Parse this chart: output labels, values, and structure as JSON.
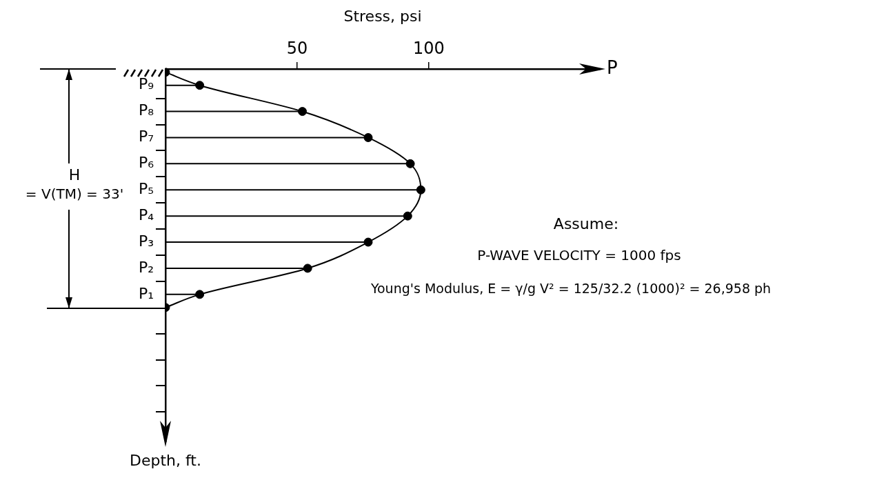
{
  "chart_data": {
    "type": "lollipop",
    "orientation": "horizontal",
    "xlabel": "Stress, psi",
    "ylabel": "Depth, ft.",
    "categories": [
      null,
      null,
      "P₉",
      null,
      null,
      null,
      "P₈",
      null,
      null,
      null,
      "P₇",
      null,
      null,
      null,
      "P₆",
      null,
      null,
      null,
      "P₅",
      null,
      null,
      null,
      "P₄",
      null,
      null,
      null,
      "P₃",
      null,
      null,
      null,
      "P₂",
      null,
      null,
      null,
      "P₁",
      null,
      null,
      null,
      null,
      null,
      null,
      null,
      null,
      null,
      null,
      null,
      null,
      null,
      null,
      null,
      null,
      null,
      null,
      null,
      null,
      null,
      null
    ],
    "xlim": [
      0,
      165
    ],
    "xticks": [
      50,
      100
    ],
    "legend": false,
    "grid": false,
    "series": [
      {
        "color": "#000000",
        "marker": "circle",
        "values": [
          0,
          null,
          13,
          null,
          null,
          null,
          52,
          null,
          null,
          null,
          77,
          null,
          null,
          null,
          93,
          null,
          null,
          null,
          97,
          null,
          null,
          null,
          92,
          null,
          null,
          null,
          77,
          null,
          null,
          null,
          54,
          null,
          null,
          null,
          13,
          null,
          0,
          null,
          null,
          null,
          null,
          null,
          null,
          null,
          null,
          null,
          null,
          null,
          null,
          null,
          null,
          null,
          null,
          null,
          null,
          null,
          null
        ]
      },
      {
        "type": "line",
        "color": "#000000",
        "marker": "none",
        "values": [
          0,
          null,
          13,
          null,
          null,
          null,
          52,
          null,
          null,
          null,
          77,
          null,
          null,
          null,
          93,
          null,
          null,
          null,
          97,
          null,
          null,
          null,
          92,
          null,
          null,
          null,
          77,
          null,
          null,
          null,
          54,
          null,
          null,
          null,
          13,
          null,
          0,
          null,
          null,
          null,
          null,
          null,
          null,
          null,
          null,
          null,
          null,
          null,
          null,
          null,
          null,
          null,
          null,
          null,
          null,
          null,
          null
        ]
      }
    ],
    "annotations": [
      "P",
      "H",
      "= V(TM) = 33'",
      "Assume:",
      "P-WAVE VELOCITY = 1000 fps",
      "Young's Modulus, E = γ/g V² = 125/32.2 (1000)² = 26,958 ph"
    ]
  }
}
